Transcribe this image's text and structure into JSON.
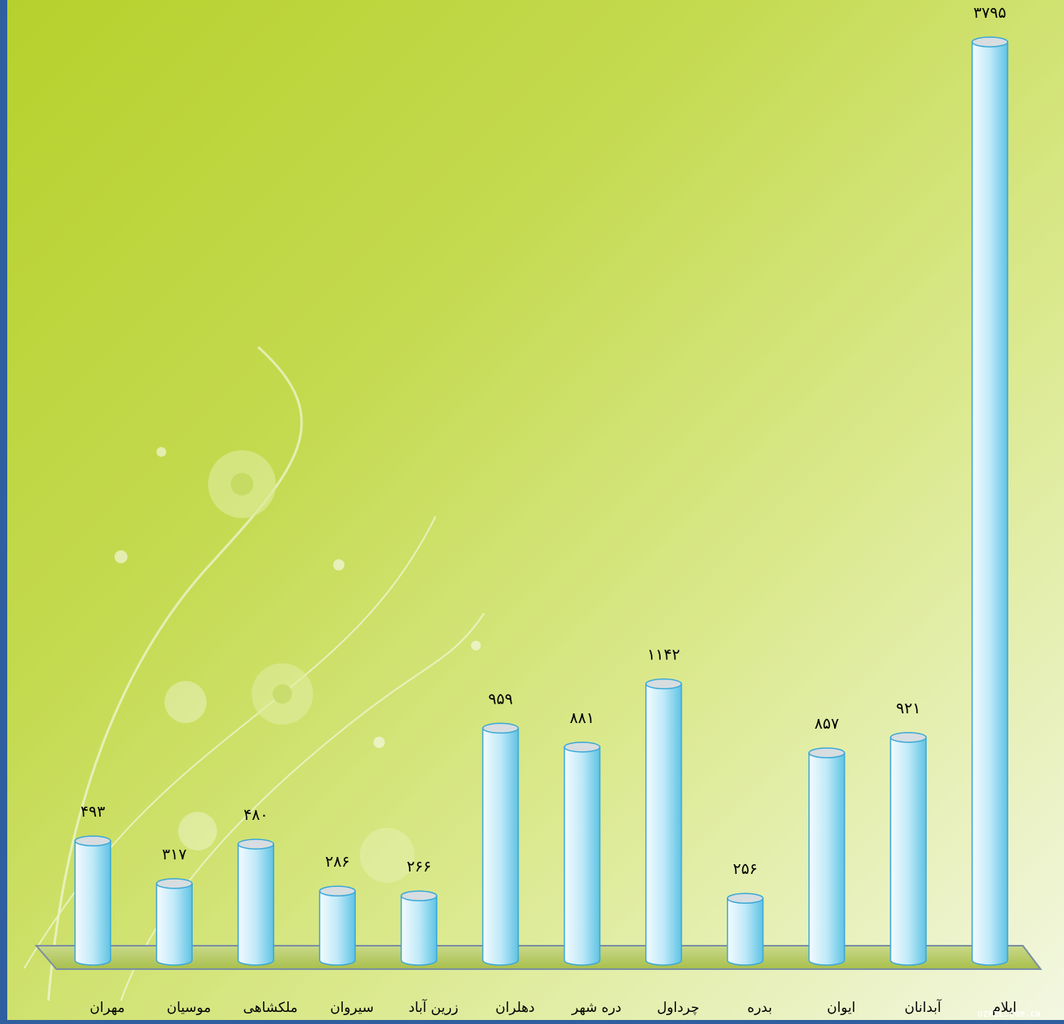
{
  "chart_data": {
    "type": "bar",
    "title": "",
    "xlabel": "",
    "ylabel": "",
    "ylim": [
      0,
      3795
    ],
    "grid": false,
    "legend": "none",
    "categories": [
      "مهران",
      "موسیان",
      "ملکشاهی",
      "سیروان",
      "زرین آباد",
      "دهلران",
      "دره شهر",
      "چرداول",
      "بدره",
      "ایوان",
      "آبدانان",
      "ایلام"
    ],
    "values": [
      493,
      317,
      480,
      286,
      266,
      959,
      881,
      1142,
      256,
      857,
      921,
      3795
    ],
    "value_labels": [
      "۴۹۳",
      "۳۱۷",
      "۴۸۰",
      "۲۸۶",
      "۲۶۶",
      "۹۵۹",
      "۸۸۱",
      "۱۱۴۲",
      "۲۵۶",
      "۸۵۷",
      "۹۲۱",
      "۳۷۹۵"
    ]
  },
  "colors": {
    "bar_light": "#f4fbff",
    "bar_mid": "#bfe9f8",
    "bar_dark": "#5fc3e4",
    "bar_top": "#d7dde0",
    "bar_outline": "#3aa8d8",
    "frame_border": "#2f5f9e"
  },
  "watermark": "UZPZL.COM.CN"
}
